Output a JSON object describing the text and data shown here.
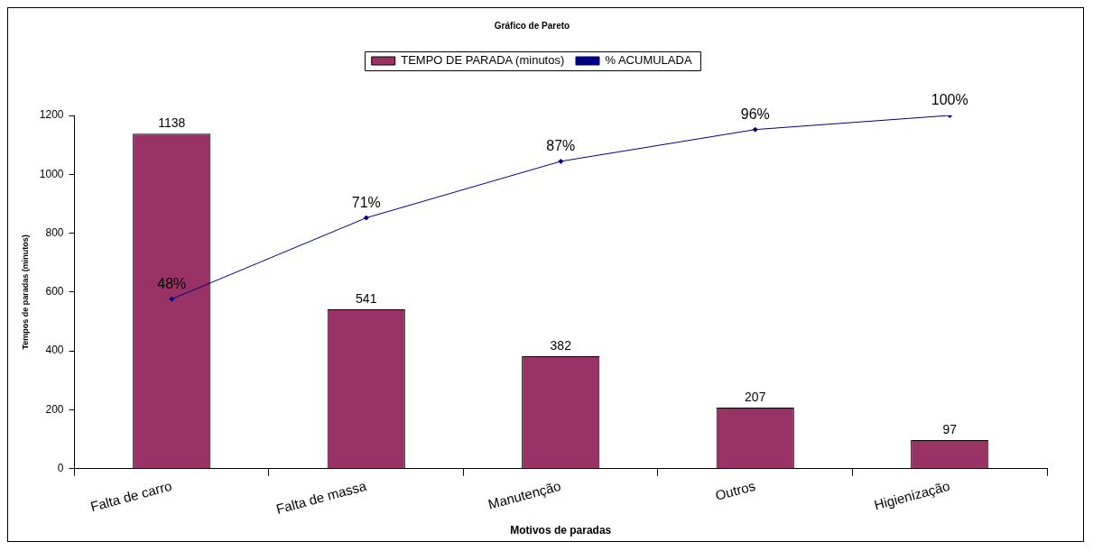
{
  "chart_data": {
    "type": "bar",
    "title": "Gráfico de Pareto",
    "xlabel": "Motivos de paradas",
    "ylabel": "Tempos de paradas (minutos)",
    "categories": [
      "Falta de carro",
      "Falta de massa",
      "Manutenção",
      "Outros",
      "Higienização"
    ],
    "series": [
      {
        "name": "TEMPO DE PARADA (minutos)",
        "color": "#993366",
        "values": [
          1138,
          541,
          382,
          207,
          97
        ],
        "value_labels": [
          "1138",
          "541",
          "382",
          "207",
          "97"
        ]
      },
      {
        "name": "% ACUMULADA",
        "type": "line",
        "axis": "y2",
        "color": "#000080",
        "values": [
          48,
          71,
          87,
          96,
          100
        ],
        "value_labels": [
          "48%",
          "71%",
          "87%",
          "96%",
          "100%"
        ]
      }
    ],
    "ylim": [
      0,
      1200
    ],
    "yticks": [
      0,
      200,
      400,
      600,
      800,
      {
        "value": 1000,
        "label": "1000"
      },
      {
        "value": 1200,
        "label": "1200"
      }
    ],
    "y2lim": [
      0,
      100
    ],
    "grid": false,
    "legend": "top",
    "marker": "diamond",
    "line_style": "solid"
  }
}
